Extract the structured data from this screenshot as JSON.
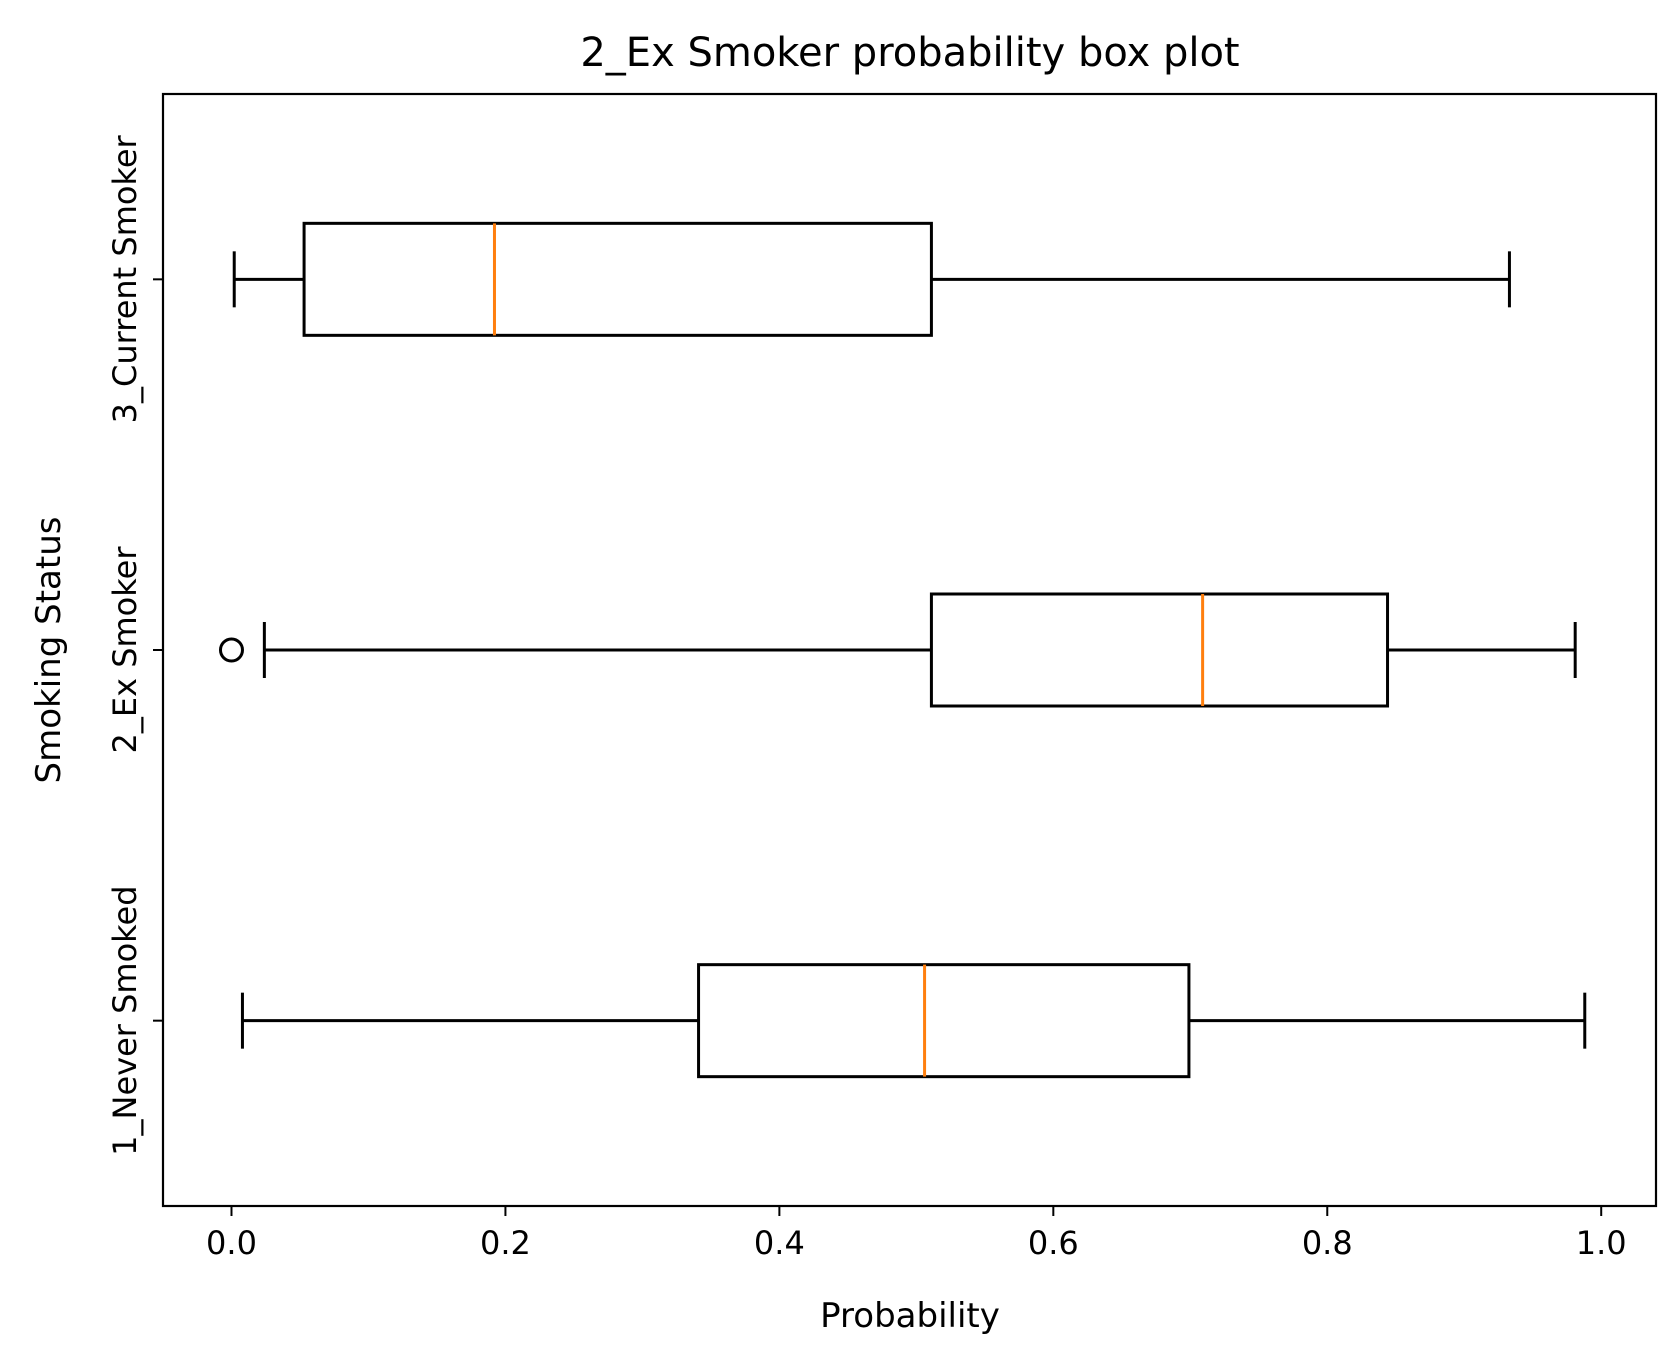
{
  "chart_data": {
    "type": "box",
    "orientation": "horizontal",
    "title": "2_Ex Smoker probability box plot",
    "xlabel": "Probability",
    "ylabel": "Smoking Status",
    "xlim": [
      -0.05,
      1.04
    ],
    "x_ticks": [
      "0.0",
      "0.2",
      "0.4",
      "0.6",
      "0.8",
      "1.0"
    ],
    "x_tick_values": [
      0.0,
      0.2,
      0.4,
      0.6,
      0.8,
      1.0
    ],
    "categories": [
      "1_Never Smoked",
      "2_Ex Smoker",
      "3_Current Smoker"
    ],
    "grid": false,
    "boxes": [
      {
        "category": "1_Never Smoked",
        "whisker_low": 0.008,
        "q1": 0.341,
        "median": 0.506,
        "q3": 0.699,
        "whisker_high": 0.988,
        "outliers": []
      },
      {
        "category": "2_Ex Smoker",
        "whisker_low": 0.024,
        "q1": 0.511,
        "median": 0.709,
        "q3": 0.844,
        "whisker_high": 0.981,
        "outliers": [
          0.0
        ]
      },
      {
        "category": "3_Current Smoker",
        "whisker_low": 0.002,
        "q1": 0.053,
        "median": 0.192,
        "q3": 0.511,
        "whisker_high": 0.933,
        "outliers": []
      }
    ],
    "colors": {
      "box": "#000000",
      "median": "#ff7f0e",
      "outlier": "#000000"
    }
  }
}
